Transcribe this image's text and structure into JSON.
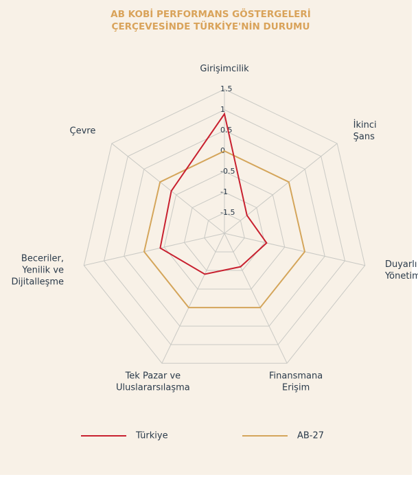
{
  "chart_data": {
    "type": "radar",
    "title": "AB KOBİ PERFORMANS GÖSTERGELERİ ÇERÇEVESİNDE TÜRKİYE'NİN DURUMU",
    "categories": [
      "Girişimcilik",
      "İkinci\nŞans",
      "Duyarlı\nYönetim",
      "Finansmana\nErişim",
      "Tek Pazar ve\nUluslararsılaşma",
      "Beceriler,\nYenilik ve\nDijitalleşme",
      "Çevre"
    ],
    "series": [
      {
        "name": "Türkiye",
        "color": "#c8202f",
        "values": [
          0.9,
          -1.3,
          -0.95,
          -1.1,
          -0.9,
          -0.4,
          -0.35
        ]
      },
      {
        "name": "AB-27",
        "color": "#d4a55a",
        "values": [
          0,
          0,
          0,
          0,
          0,
          0,
          0
        ]
      }
    ],
    "ylim": [
      -2,
      1.5
    ],
    "yticks": [
      -1.5,
      -1,
      -0.5,
      0,
      0.5,
      1,
      1.5
    ],
    "grid": true,
    "legend": "bottom"
  }
}
